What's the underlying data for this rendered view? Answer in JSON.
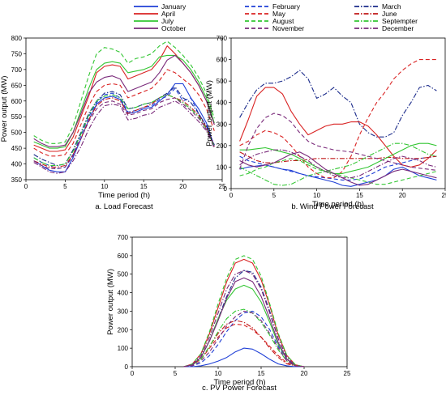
{
  "legend": [
    {
      "name": "January",
      "color": "#1f3fd6",
      "dash": "solid"
    },
    {
      "name": "February",
      "color": "#1f3fd6",
      "dash": "dash"
    },
    {
      "name": "March",
      "color": "#1a2a8a",
      "dash": "dashdot"
    },
    {
      "name": "April",
      "color": "#d92323",
      "dash": "solid"
    },
    {
      "name": "May",
      "color": "#d92323",
      "dash": "dash"
    },
    {
      "name": "June",
      "color": "#c01818",
      "dash": "dashdot"
    },
    {
      "name": "July",
      "color": "#33c633",
      "dash": "solid"
    },
    {
      "name": "August",
      "color": "#33c633",
      "dash": "dash"
    },
    {
      "name": "Septempter",
      "color": "#33c633",
      "dash": "dashdot"
    },
    {
      "name": "October",
      "color": "#7a2a7a",
      "dash": "solid"
    },
    {
      "name": "November",
      "color": "#7a2a7a",
      "dash": "dash"
    },
    {
      "name": "December",
      "color": "#7a2a7a",
      "dash": "dashdot"
    }
  ],
  "chart_data": [
    {
      "type": "line",
      "caption": "a. Load Forecast",
      "xlabel": "Time period (h)",
      "ylabel": "Power output (MW)",
      "xlim": [
        0,
        25
      ],
      "ylim": [
        350,
        800
      ],
      "xticks": [
        0,
        5,
        10,
        15,
        20,
        25
      ],
      "yticks": [
        350,
        400,
        450,
        500,
        550,
        600,
        650,
        700,
        750,
        800
      ],
      "x": [
        1,
        2,
        3,
        4,
        5,
        6,
        7,
        8,
        9,
        10,
        11,
        12,
        13,
        14,
        15,
        16,
        17,
        18,
        19,
        20,
        21,
        22,
        23,
        24
      ],
      "series": [
        {
          "name": "January",
          "values": [
            410,
            395,
            380,
            375,
            375,
            420,
            480,
            540,
            590,
            610,
            615,
            605,
            560,
            565,
            575,
            580,
            600,
            620,
            655,
            655,
            610,
            575,
            530,
            455
          ]
        },
        {
          "name": "February",
          "values": [
            420,
            405,
            395,
            385,
            390,
            430,
            490,
            550,
            595,
            620,
            625,
            610,
            565,
            570,
            580,
            585,
            605,
            615,
            640,
            600,
            610,
            560,
            520,
            460
          ]
        },
        {
          "name": "March",
          "values": [
            430,
            415,
            405,
            395,
            400,
            445,
            500,
            560,
            600,
            625,
            630,
            620,
            575,
            580,
            590,
            595,
            610,
            625,
            645,
            610,
            595,
            560,
            520,
            460
          ]
        },
        {
          "name": "April",
          "values": [
            460,
            450,
            440,
            440,
            445,
            485,
            550,
            615,
            690,
            710,
            715,
            710,
            670,
            680,
            690,
            700,
            730,
            775,
            750,
            720,
            690,
            650,
            600,
            525
          ]
        },
        {
          "name": "May",
          "values": [
            450,
            435,
            425,
            425,
            430,
            465,
            525,
            585,
            630,
            650,
            655,
            650,
            610,
            620,
            630,
            640,
            665,
            700,
            690,
            670,
            650,
            620,
            575,
            505
          ]
        },
        {
          "name": "June",
          "values": [
            410,
            400,
            390,
            390,
            395,
            430,
            480,
            540,
            585,
            605,
            610,
            600,
            560,
            570,
            580,
            590,
            610,
            620,
            610,
            600,
            580,
            555,
            515,
            455
          ]
        },
        {
          "name": "July",
          "values": [
            470,
            460,
            450,
            450,
            455,
            500,
            570,
            640,
            700,
            720,
            725,
            720,
            690,
            695,
            700,
            710,
            740,
            745,
            745,
            730,
            700,
            660,
            610,
            530
          ]
        },
        {
          "name": "August",
          "values": [
            490,
            475,
            465,
            465,
            470,
            520,
            600,
            680,
            750,
            770,
            765,
            755,
            720,
            735,
            740,
            750,
            775,
            790,
            770,
            745,
            715,
            675,
            625,
            545
          ]
        },
        {
          "name": "Septempter",
          "values": [
            420,
            405,
            395,
            395,
            400,
            440,
            495,
            555,
            600,
            615,
            620,
            610,
            575,
            580,
            590,
            595,
            610,
            620,
            610,
            595,
            575,
            550,
            510,
            455
          ]
        },
        {
          "name": "October",
          "values": [
            480,
            465,
            455,
            455,
            460,
            500,
            560,
            625,
            660,
            675,
            680,
            670,
            630,
            640,
            650,
            660,
            690,
            730,
            745,
            720,
            690,
            650,
            600,
            525
          ]
        },
        {
          "name": "November",
          "values": [
            410,
            395,
            385,
            385,
            390,
            425,
            480,
            535,
            575,
            595,
            600,
            590,
            555,
            560,
            570,
            575,
            595,
            605,
            610,
            590,
            570,
            545,
            510,
            460
          ]
        },
        {
          "name": "December",
          "values": [
            405,
            390,
            375,
            370,
            375,
            410,
            455,
            510,
            555,
            585,
            590,
            585,
            540,
            545,
            555,
            560,
            580,
            590,
            600,
            585,
            560,
            535,
            505,
            450
          ]
        }
      ]
    },
    {
      "type": "line",
      "caption": "b. Wind Power Forecast",
      "xlabel": "Time period (h)",
      "ylabel": "Power output (MW)",
      "xlim": [
        0,
        25
      ],
      "ylim": [
        0,
        700
      ],
      "xticks": [
        0,
        5,
        10,
        15,
        20,
        25
      ],
      "yticks": [
        0,
        100,
        200,
        300,
        400,
        500,
        600,
        700
      ],
      "x": [
        1,
        2,
        3,
        4,
        5,
        6,
        7,
        8,
        9,
        10,
        11,
        12,
        13,
        14,
        15,
        16,
        17,
        18,
        19,
        20,
        21,
        22,
        23,
        24
      ],
      "series": [
        {
          "name": "January",
          "values": [
            90,
            100,
            105,
            110,
            100,
            90,
            85,
            70,
            60,
            50,
            40,
            30,
            15,
            10,
            20,
            30,
            40,
            60,
            90,
            100,
            80,
            60,
            50,
            40
          ]
        },
        {
          "name": "February",
          "values": [
            150,
            130,
            120,
            110,
            100,
            90,
            80,
            70,
            60,
            55,
            50,
            45,
            40,
            40,
            45,
            60,
            80,
            100,
            110,
            120,
            130,
            140,
            145,
            150
          ]
        },
        {
          "name": "March",
          "values": [
            330,
            400,
            460,
            490,
            490,
            500,
            520,
            550,
            510,
            420,
            440,
            470,
            430,
            400,
            300,
            260,
            240,
            240,
            260,
            340,
            400,
            470,
            480,
            455
          ]
        },
        {
          "name": "April",
          "values": [
            220,
            320,
            430,
            470,
            470,
            440,
            360,
            300,
            250,
            270,
            290,
            300,
            300,
            310,
            310,
            290,
            250,
            200,
            150,
            110,
            100,
            110,
            140,
            180
          ]
        },
        {
          "name": "May",
          "values": [
            200,
            220,
            250,
            270,
            260,
            240,
            200,
            150,
            100,
            70,
            50,
            50,
            80,
            150,
            250,
            330,
            400,
            450,
            510,
            550,
            580,
            600,
            600,
            600
          ]
        },
        {
          "name": "June",
          "values": [
            170,
            150,
            130,
            120,
            120,
            125,
            130,
            130,
            135,
            140,
            140,
            140,
            140,
            140,
            140,
            140,
            140,
            145,
            145,
            140,
            140,
            140,
            145,
            150
          ]
        },
        {
          "name": "July",
          "values": [
            180,
            180,
            185,
            190,
            180,
            170,
            160,
            140,
            120,
            100,
            80,
            70,
            70,
            80,
            90,
            100,
            120,
            140,
            160,
            180,
            200,
            210,
            210,
            200
          ]
        },
        {
          "name": "August",
          "values": [
            60,
            70,
            90,
            100,
            120,
            130,
            140,
            130,
            110,
            90,
            80,
            70,
            60,
            50,
            40,
            30,
            20,
            20,
            30,
            40,
            50,
            60,
            70,
            80
          ]
        },
        {
          "name": "Septempter",
          "values": [
            100,
            80,
            60,
            40,
            20,
            15,
            20,
            40,
            60,
            70,
            80,
            90,
            100,
            110,
            130,
            150,
            170,
            190,
            210,
            210,
            200,
            180,
            160,
            150
          ]
        },
        {
          "name": "October",
          "values": [
            130,
            110,
            100,
            110,
            120,
            140,
            160,
            170,
            150,
            120,
            90,
            70,
            50,
            30,
            15,
            20,
            40,
            60,
            80,
            90,
            80,
            70,
            60,
            50
          ]
        },
        {
          "name": "November",
          "values": [
            90,
            200,
            280,
            330,
            350,
            340,
            310,
            260,
            220,
            200,
            190,
            180,
            175,
            170,
            160,
            150,
            140,
            130,
            120,
            110,
            100,
            95,
            90,
            85
          ]
        },
        {
          "name": "December",
          "values": [
            110,
            140,
            160,
            170,
            180,
            180,
            170,
            150,
            130,
            100,
            80,
            60,
            50,
            50,
            60,
            80,
            100,
            120,
            140,
            150,
            140,
            130,
            110,
            100
          ]
        }
      ]
    },
    {
      "type": "line",
      "caption": "c. PV Power Forecast",
      "xlabel": "Time period (h)",
      "ylabel": "Power output (MW)",
      "xlim": [
        0,
        25
      ],
      "ylim": [
        0,
        700
      ],
      "xticks": [
        0,
        5,
        10,
        15,
        20,
        25
      ],
      "yticks": [
        0,
        100,
        200,
        300,
        400,
        500,
        600,
        700
      ],
      "x": [
        6,
        7,
        8,
        9,
        10,
        11,
        12,
        13,
        14,
        15,
        16,
        17,
        18,
        19,
        20
      ],
      "series": [
        {
          "name": "January",
          "values": [
            0,
            0,
            5,
            15,
            30,
            50,
            80,
            100,
            95,
            70,
            40,
            15,
            5,
            0,
            0
          ]
        },
        {
          "name": "February",
          "values": [
            0,
            5,
            20,
            60,
            120,
            190,
            250,
            290,
            300,
            270,
            200,
            110,
            40,
            5,
            0
          ]
        },
        {
          "name": "March",
          "values": [
            0,
            10,
            50,
            140,
            260,
            380,
            480,
            520,
            510,
            430,
            300,
            150,
            50,
            5,
            0
          ]
        },
        {
          "name": "April",
          "values": [
            0,
            15,
            70,
            180,
            320,
            460,
            560,
            580,
            560,
            470,
            330,
            170,
            60,
            10,
            0
          ]
        },
        {
          "name": "May",
          "values": [
            0,
            10,
            40,
            100,
            160,
            210,
            230,
            225,
            200,
            160,
            110,
            60,
            20,
            5,
            0
          ]
        },
        {
          "name": "June",
          "values": [
            0,
            10,
            40,
            110,
            180,
            230,
            250,
            240,
            210,
            160,
            100,
            50,
            15,
            5,
            0
          ]
        },
        {
          "name": "July",
          "values": [
            0,
            10,
            50,
            140,
            260,
            360,
            420,
            440,
            420,
            350,
            240,
            120,
            40,
            5,
            0
          ]
        },
        {
          "name": "August",
          "values": [
            0,
            15,
            70,
            190,
            340,
            480,
            580,
            600,
            580,
            490,
            340,
            180,
            60,
            10,
            0
          ]
        },
        {
          "name": "Septempter",
          "values": [
            0,
            10,
            40,
            110,
            190,
            260,
            300,
            310,
            290,
            240,
            170,
            90,
            30,
            5,
            0
          ]
        },
        {
          "name": "October",
          "values": [
            0,
            10,
            50,
            140,
            250,
            370,
            460,
            480,
            460,
            380,
            260,
            130,
            40,
            5,
            0
          ]
        },
        {
          "name": "November",
          "values": [
            0,
            5,
            30,
            80,
            150,
            220,
            270,
            300,
            290,
            250,
            180,
            100,
            30,
            5,
            0
          ]
        },
        {
          "name": "December",
          "values": [
            0,
            10,
            60,
            160,
            290,
            420,
            500,
            520,
            500,
            420,
            290,
            150,
            50,
            5,
            0
          ]
        }
      ]
    }
  ]
}
